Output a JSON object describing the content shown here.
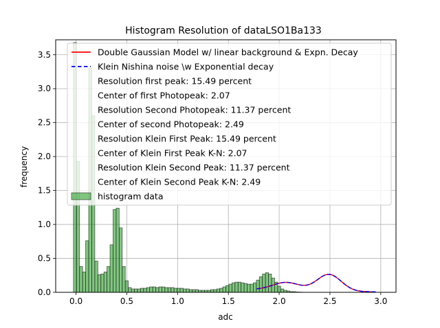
{
  "chart_data": {
    "type": "bar",
    "title": "Histogram Resolution of dataLSO1Ba133",
    "xlabel": "adc",
    "ylabel": "frequency",
    "xlim": [
      -0.2,
      3.15
    ],
    "ylim": [
      0,
      3.72
    ],
    "grid": true,
    "xticks": [
      0.0,
      0.5,
      1.0,
      1.5,
      2.0,
      2.5,
      3.0
    ],
    "xtick_labels": [
      "0.0",
      "0.5",
      "1.0",
      "1.5",
      "2.0",
      "2.5",
      "3.0"
    ],
    "yticks": [
      0.0,
      0.5,
      1.0,
      1.5,
      2.0,
      2.5,
      3.0,
      3.5
    ],
    "ytick_labels": [
      "0.0",
      "0.5",
      "1.0",
      "1.5",
      "2.0",
      "2.5",
      "3.0",
      "3.5"
    ],
    "legend_position": "top-right",
    "legend": [
      {
        "label": "Double Gaussian Model w/ linear background & Expn. Decay",
        "style": "line",
        "color": "#ff0000"
      },
      {
        "label": "Klein Nishina noise \\w Exponential decay",
        "style": "dashed",
        "color": "#0000ff"
      },
      {
        "label": "Resolution first peak: 15.49 percent",
        "style": "none"
      },
      {
        "label": "Center of first Photopeak: 2.07",
        "style": "none"
      },
      {
        "label": "Resolution Second Photopeak: 11.37 percent",
        "style": "none"
      },
      {
        "label": "Center of second Photopeak: 2.49",
        "style": "none"
      },
      {
        "label": "Resolution Klein First Peak: 15.49 percent",
        "style": "none"
      },
      {
        "label": "Center of Klein First Peak K-N: 2.07",
        "style": "none"
      },
      {
        "label": "Resolution Klein Second Peak: 11.37 percent",
        "style": "none"
      },
      {
        "label": "Center of Klein Second Peak K-N: 2.49",
        "style": "none"
      },
      {
        "label": "histogram data",
        "style": "patch",
        "color": "#2ca02c"
      }
    ],
    "histogram": {
      "name": "histogram data",
      "color": "#2ca02c",
      "bin_start": -0.025,
      "bin_width": 0.03,
      "values": [
        3.68,
        1.93,
        0.38,
        0.3,
        0.76,
        3.3,
        2.6,
        0.46,
        0.26,
        0.27,
        0.3,
        0.38,
        0.7,
        1.22,
        1.24,
        0.95,
        0.38,
        0.17,
        0.07,
        0.05,
        0.05,
        0.05,
        0.06,
        0.06,
        0.07,
        0.08,
        0.08,
        0.07,
        0.08,
        0.08,
        0.07,
        0.07,
        0.07,
        0.06,
        0.06,
        0.06,
        0.05,
        0.05,
        0.04,
        0.04,
        0.04,
        0.03,
        0.03,
        0.03,
        0.03,
        0.04,
        0.04,
        0.05,
        0.06,
        0.08,
        0.1,
        0.12,
        0.14,
        0.15,
        0.15,
        0.14,
        0.13,
        0.12,
        0.12,
        0.14,
        0.18,
        0.23,
        0.27,
        0.29,
        0.27,
        0.21,
        0.15,
        0.09,
        0.05,
        0.03,
        0.02,
        0.01,
        0.01,
        0.005,
        0.003
      ]
    },
    "fit_curves": [
      {
        "name": "Double Gaussian Model w/ linear background & Expn. Decay",
        "color": "#ff0000",
        "x_range": [
          1.78,
          2.95
        ],
        "components": [
          {
            "center": 2.07,
            "amplitude": 0.12,
            "sigma": 0.136
          },
          {
            "center": 2.49,
            "amplitude": 0.25,
            "sigma": 0.12
          }
        ],
        "background": {
          "amplitude": 0.04,
          "decay": 1.5,
          "start": 1.78
        }
      },
      {
        "name": "Klein Nishina noise \\w Exponential decay",
        "color": "#0000ff",
        "x_range": [
          1.78,
          2.95
        ],
        "components": [
          {
            "center": 2.07,
            "amplitude": 0.12,
            "sigma": 0.136
          },
          {
            "center": 2.49,
            "amplitude": 0.25,
            "sigma": 0.12
          }
        ],
        "background": {
          "amplitude": 0.04,
          "decay": 1.5,
          "start": 1.78
        }
      }
    ]
  }
}
